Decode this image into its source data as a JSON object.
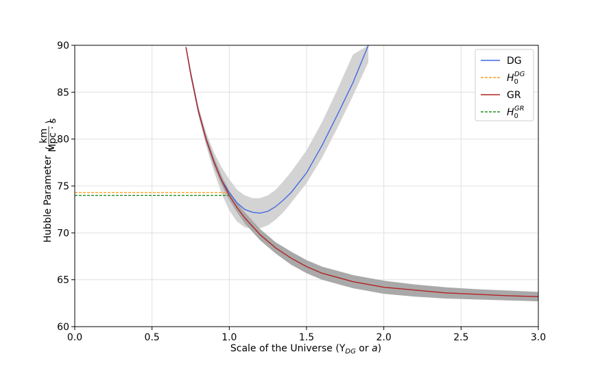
{
  "chart_data": {
    "type": "line",
    "xlabel": "Scale of the Universe (Y",
    "xlabel_sub": "DG",
    "xlabel_mid": " or ",
    "xlabel_var": "a",
    "xlabel_end": ")",
    "ylabel": "Hubble Parameter",
    "ylabel_unit_num": "km",
    "ylabel_unit_den": "Mpc · s",
    "xlim": [
      0.0,
      3.0
    ],
    "ylim": [
      60,
      90
    ],
    "xticks": [
      0.0,
      0.5,
      1.0,
      1.5,
      2.0,
      2.5,
      3.0
    ],
    "xtick_labels": [
      "0.0",
      "0.5",
      "1.0",
      "1.5",
      "2.0",
      "2.5",
      "3.0"
    ],
    "yticks": [
      60,
      65,
      70,
      75,
      80,
      85,
      90
    ],
    "ytick_labels": [
      "60",
      "65",
      "70",
      "75",
      "80",
      "85",
      "90"
    ],
    "grid": true,
    "legend_placement": "top-right",
    "legend": [
      {
        "label": "DG",
        "sup": "",
        "color": "#4169e1",
        "style": "solid"
      },
      {
        "label": "H",
        "sub": "0",
        "sup": "DG",
        "color": "#ff9f1c",
        "style": "dashed"
      },
      {
        "label": "GR",
        "sup": "",
        "color": "#b22222",
        "style": "solid"
      },
      {
        "label": "H",
        "sub": "0",
        "sup": "GR",
        "color": "#228b22",
        "style": "dashed"
      }
    ],
    "series": [
      {
        "name": "DG",
        "color": "#4169e1",
        "band_color": "#d3d3d3",
        "x": [
          0.72,
          0.75,
          0.8,
          0.85,
          0.9,
          0.95,
          1.0,
          1.05,
          1.1,
          1.15,
          1.2,
          1.25,
          1.3,
          1.35,
          1.4,
          1.5,
          1.6,
          1.7,
          1.8,
          1.9
        ],
        "y": [
          89.8,
          87.0,
          83.0,
          80.0,
          77.6,
          75.6,
          74.3,
          73.2,
          72.5,
          72.2,
          72.1,
          72.3,
          72.8,
          73.5,
          74.3,
          76.4,
          79.3,
          82.6,
          86.0,
          90.0
        ],
        "band_lower": [
          89.5,
          86.5,
          82.5,
          79.3,
          76.6,
          74.2,
          72.4,
          71.2,
          70.6,
          70.4,
          70.5,
          70.8,
          71.4,
          72.2,
          73.2,
          75.3,
          78.0,
          81.2,
          84.6,
          88.2
        ],
        "band_upper": [
          90.0,
          87.5,
          83.5,
          80.7,
          78.6,
          77.0,
          75.7,
          74.6,
          74.0,
          73.7,
          73.7,
          74.0,
          74.6,
          75.5,
          76.5,
          78.8,
          81.8,
          85.3,
          89.0,
          90.0
        ]
      },
      {
        "name": "GR",
        "color": "#b22222",
        "band_color": "#a9a9a9",
        "x": [
          0.72,
          0.75,
          0.8,
          0.85,
          0.9,
          0.95,
          1.0,
          1.05,
          1.1,
          1.2,
          1.3,
          1.4,
          1.5,
          1.6,
          1.8,
          2.0,
          2.2,
          2.4,
          2.6,
          2.8,
          3.0
        ],
        "y": [
          89.8,
          87.0,
          83.0,
          80.0,
          77.6,
          75.6,
          74.0,
          72.7,
          71.6,
          69.8,
          68.4,
          67.3,
          66.4,
          65.7,
          64.8,
          64.2,
          63.9,
          63.6,
          63.45,
          63.3,
          63.2
        ],
        "band_lower": [
          89.6,
          86.7,
          82.7,
          79.6,
          77.1,
          75.1,
          73.5,
          72.2,
          71.0,
          69.2,
          67.8,
          66.6,
          65.7,
          65.0,
          64.1,
          63.5,
          63.2,
          63.0,
          62.9,
          62.8,
          62.7
        ],
        "band_upper": [
          90.0,
          87.3,
          83.3,
          80.4,
          78.1,
          76.1,
          74.5,
          73.2,
          72.2,
          70.4,
          69.0,
          68.0,
          67.1,
          66.4,
          65.5,
          64.9,
          64.5,
          64.2,
          64.0,
          63.85,
          63.7
        ]
      }
    ],
    "reference_lines": [
      {
        "name": "H0_DG",
        "y": 74.3,
        "x_start": 0.0,
        "x_end": 1.0,
        "color": "#ff9f1c"
      },
      {
        "name": "H0_GR",
        "y": 74.0,
        "x_start": 0.0,
        "x_end": 1.0,
        "color": "#228b22"
      }
    ]
  }
}
